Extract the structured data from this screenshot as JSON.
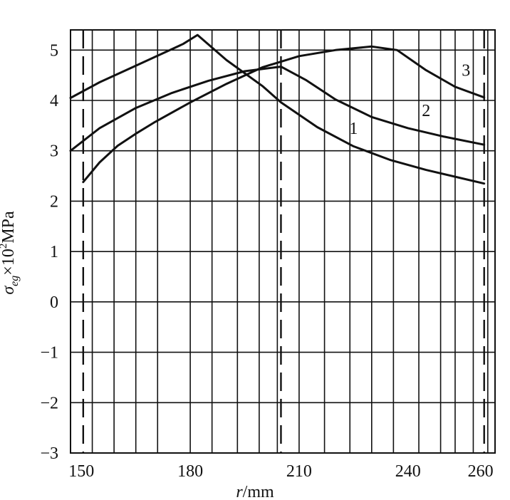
{
  "chart_data": {
    "type": "line",
    "xlabel_var": "r",
    "xlabel_unit": "/mm",
    "ylabel_var": "σ",
    "ylabel_sub": "eg",
    "ylabel_mid": "×10",
    "ylabel_exp": "2",
    "ylabel_unit": "MPa",
    "xlim": [
      147,
      264
    ],
    "ylim": [
      -3,
      5.4
    ],
    "x_ticks": [
      150,
      180,
      210,
      240,
      260
    ],
    "x_tick_labels": [
      "150",
      "180",
      "210",
      "240",
      "260"
    ],
    "y_ticks": [
      5,
      4,
      3,
      2,
      1,
      0,
      -1,
      -2,
      -3
    ],
    "y_tick_labels": [
      "5",
      "4",
      "3",
      "2",
      "1",
      "0",
      "−1",
      "−2",
      "−3"
    ],
    "x_gridlines": [
      153,
      159,
      165,
      171,
      180,
      186,
      193,
      199,
      204,
      210,
      217,
      224,
      230,
      236,
      243,
      249,
      253,
      258,
      262
    ],
    "dashed_verticals": [
      150.5,
      205,
      261
    ],
    "grid": true,
    "series": [
      {
        "name": "1",
        "points": [
          [
            150.5,
            2.38
          ],
          [
            155,
            2.77
          ],
          [
            160,
            3.1
          ],
          [
            165,
            3.34
          ],
          [
            170,
            3.56
          ],
          [
            180,
            3.96
          ],
          [
            190,
            4.33
          ],
          [
            200,
            4.66
          ],
          [
            210,
            4.88
          ],
          [
            220,
            5.0
          ],
          [
            230,
            5.07
          ],
          [
            237,
            5.0
          ],
          [
            245,
            4.6
          ],
          [
            253,
            4.27
          ],
          [
            261,
            4.06
          ]
        ]
      },
      {
        "name": "2",
        "points": [
          [
            147,
            3.0
          ],
          [
            155,
            3.45
          ],
          [
            165,
            3.85
          ],
          [
            175,
            4.15
          ],
          [
            185,
            4.39
          ],
          [
            195,
            4.58
          ],
          [
            205,
            4.67
          ],
          [
            212,
            4.4
          ],
          [
            220,
            4.02
          ],
          [
            230,
            3.67
          ],
          [
            240,
            3.45
          ],
          [
            250,
            3.28
          ],
          [
            261,
            3.12
          ]
        ]
      },
      {
        "name": "3",
        "points": [
          [
            147,
            4.05
          ],
          [
            155,
            4.36
          ],
          [
            165,
            4.69
          ],
          [
            175,
            5.02
          ],
          [
            178,
            5.12
          ],
          [
            182,
            5.3
          ],
          [
            190,
            4.8
          ],
          [
            200,
            4.28
          ],
          [
            205,
            3.96
          ],
          [
            215,
            3.47
          ],
          [
            225,
            3.09
          ],
          [
            235,
            2.82
          ],
          [
            245,
            2.62
          ],
          [
            261,
            2.35
          ]
        ]
      }
    ],
    "curve_labels": [
      {
        "text": "1",
        "x": 225,
        "y": 3.45
      },
      {
        "text": "2",
        "x": 245,
        "y": 3.8
      },
      {
        "text": "3",
        "x": 256,
        "y": 4.6
      }
    ]
  }
}
